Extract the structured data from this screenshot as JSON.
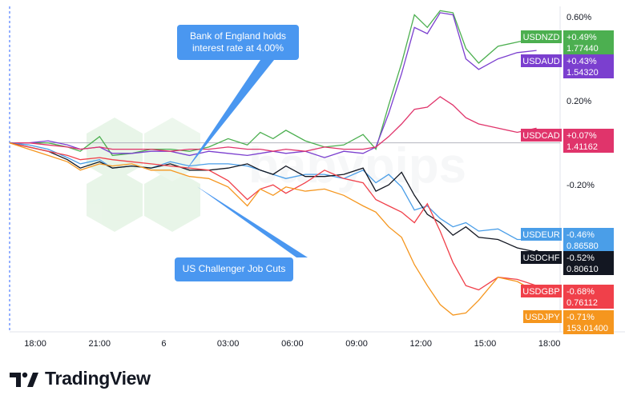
{
  "branding": {
    "name": "TradingView",
    "watermark": "babypips"
  },
  "chart_data": {
    "type": "line",
    "x_ticks": [
      "18:00",
      "21:00",
      "6",
      "03:00",
      "06:00",
      "09:00",
      "12:00",
      "15:00",
      "18:00"
    ],
    "y_ticks": [
      "0.60%",
      "0.20%",
      "-0.20%",
      "-0.60%"
    ],
    "ylim": [
      -0.9,
      0.65
    ],
    "x_unit_hours_from_first_tick": true,
    "xlim_hours": [
      -1.2,
      24.5
    ],
    "grid": false,
    "annotations": [
      {
        "text": [
          "Bank of England holds",
          "interest rate at 4.00%"
        ],
        "x": 7.0,
        "y": -0.09
      },
      {
        "text": [
          "US Challenger Job Cuts"
        ],
        "x": 7.55,
        "y": -0.17
      }
    ],
    "series": [
      {
        "name": "USDNZD",
        "color": "#4caf50",
        "change": "+0.49%",
        "price": "1.77440",
        "x": [
          -1.2,
          -0.3,
          0.6,
          1.5,
          2.1,
          3.0,
          3.6,
          4.5,
          5.4,
          6.3,
          7.2,
          8.1,
          9.0,
          9.9,
          10.5,
          11.1,
          11.7,
          12.6,
          13.5,
          14.4,
          15.3,
          15.9,
          16.5,
          17.1,
          17.7,
          18.3,
          18.9,
          19.5,
          20.1,
          20.7,
          21.6,
          22.5,
          23.4
        ],
        "values": [
          0.0,
          0.0,
          0.0,
          -0.02,
          -0.04,
          0.03,
          -0.06,
          -0.05,
          -0.03,
          -0.03,
          -0.04,
          -0.02,
          0.02,
          -0.01,
          0.05,
          0.02,
          0.06,
          0.01,
          -0.02,
          -0.01,
          0.04,
          -0.03,
          0.18,
          0.38,
          0.61,
          0.55,
          0.63,
          0.62,
          0.45,
          0.38,
          0.46,
          0.48,
          0.5
        ]
      },
      {
        "name": "USDAUD",
        "color": "#7b3fcf",
        "change": "+0.43%",
        "price": "1.54320",
        "x": [
          -1.2,
          -0.3,
          0.6,
          1.5,
          2.1,
          3.0,
          3.6,
          4.5,
          5.4,
          6.3,
          7.2,
          8.1,
          9.0,
          9.9,
          10.5,
          11.1,
          11.7,
          12.6,
          13.5,
          14.4,
          15.3,
          15.9,
          16.5,
          17.1,
          17.7,
          18.3,
          18.9,
          19.5,
          20.1,
          20.7,
          21.6,
          22.5,
          23.4
        ],
        "values": [
          0.0,
          0.0,
          0.01,
          -0.01,
          -0.03,
          -0.02,
          -0.05,
          -0.05,
          -0.04,
          -0.04,
          -0.06,
          -0.04,
          -0.05,
          -0.06,
          -0.05,
          -0.04,
          -0.05,
          -0.04,
          -0.07,
          -0.04,
          -0.05,
          -0.02,
          0.14,
          0.33,
          0.55,
          0.52,
          0.62,
          0.61,
          0.4,
          0.35,
          0.4,
          0.43,
          0.44
        ]
      },
      {
        "name": "USDCAD",
        "color": "#e0346b",
        "change": "+0.07%",
        "price": "1.41162",
        "x": [
          -1.2,
          -0.3,
          0.6,
          1.5,
          2.1,
          3.0,
          3.6,
          4.5,
          5.4,
          6.3,
          7.2,
          8.1,
          9.0,
          9.9,
          10.5,
          11.1,
          11.7,
          12.6,
          13.5,
          14.4,
          15.3,
          15.9,
          16.5,
          17.1,
          17.7,
          18.3,
          18.9,
          19.5,
          20.1,
          20.7,
          21.6,
          22.5,
          23.4
        ],
        "values": [
          0.0,
          0.0,
          -0.01,
          -0.02,
          -0.03,
          -0.02,
          -0.03,
          -0.03,
          -0.03,
          -0.04,
          -0.03,
          -0.03,
          -0.02,
          -0.03,
          -0.03,
          -0.04,
          -0.03,
          -0.04,
          -0.02,
          -0.03,
          -0.03,
          -0.02,
          0.03,
          0.09,
          0.16,
          0.17,
          0.22,
          0.18,
          0.12,
          0.09,
          0.07,
          0.05,
          0.07
        ]
      },
      {
        "name": "USDEUR",
        "color": "#4a9ee8",
        "change": "-0.46%",
        "price": "0.86580",
        "x": [
          -1.2,
          -0.3,
          0.6,
          1.5,
          2.1,
          3.0,
          3.6,
          4.5,
          5.4,
          6.3,
          7.2,
          8.1,
          9.0,
          9.9,
          10.5,
          11.1,
          11.7,
          12.6,
          13.5,
          14.4,
          15.3,
          15.9,
          16.5,
          17.1,
          17.7,
          18.3,
          18.9,
          19.5,
          20.1,
          20.7,
          21.6,
          22.5,
          23.4
        ],
        "values": [
          0.0,
          -0.01,
          -0.03,
          -0.07,
          -0.1,
          -0.08,
          -0.12,
          -0.11,
          -0.12,
          -0.09,
          -0.11,
          -0.1,
          -0.1,
          -0.11,
          -0.13,
          -0.15,
          -0.17,
          -0.15,
          -0.15,
          -0.17,
          -0.13,
          -0.19,
          -0.15,
          -0.21,
          -0.32,
          -0.3,
          -0.36,
          -0.4,
          -0.38,
          -0.42,
          -0.41,
          -0.46,
          -0.46
        ]
      },
      {
        "name": "USDCHF",
        "color": "#131722",
        "change": "-0.52%",
        "price": "0.80610",
        "x": [
          -1.2,
          -0.3,
          0.6,
          1.5,
          2.1,
          3.0,
          3.6,
          4.5,
          5.4,
          6.3,
          7.2,
          8.1,
          9.0,
          9.9,
          10.5,
          11.1,
          11.7,
          12.6,
          13.5,
          14.4,
          15.3,
          15.9,
          16.5,
          17.1,
          17.7,
          18.3,
          18.9,
          19.5,
          20.1,
          20.7,
          21.6,
          22.5,
          23.4
        ],
        "values": [
          0.0,
          -0.02,
          -0.04,
          -0.08,
          -0.12,
          -0.09,
          -0.12,
          -0.11,
          -0.12,
          -0.1,
          -0.13,
          -0.13,
          -0.12,
          -0.1,
          -0.13,
          -0.15,
          -0.11,
          -0.16,
          -0.16,
          -0.15,
          -0.12,
          -0.23,
          -0.2,
          -0.14,
          -0.25,
          -0.34,
          -0.38,
          -0.44,
          -0.4,
          -0.45,
          -0.46,
          -0.5,
          -0.52
        ]
      },
      {
        "name": "USDGBP",
        "color": "#f0404a",
        "change": "-0.68%",
        "price": "0.76112",
        "x": [
          -1.2,
          -0.3,
          0.6,
          1.5,
          2.1,
          3.0,
          3.6,
          4.5,
          5.4,
          6.3,
          7.2,
          8.1,
          9.0,
          9.9,
          10.5,
          11.1,
          11.7,
          12.6,
          13.5,
          14.4,
          15.3,
          15.9,
          16.5,
          17.1,
          17.7,
          18.3,
          18.9,
          19.5,
          20.1,
          20.7,
          21.6,
          22.5,
          23.4
        ],
        "values": [
          0.0,
          -0.02,
          -0.04,
          -0.06,
          -0.08,
          -0.07,
          -0.08,
          -0.09,
          -0.1,
          -0.11,
          -0.12,
          -0.13,
          -0.18,
          -0.27,
          -0.22,
          -0.2,
          -0.24,
          -0.19,
          -0.13,
          -0.17,
          -0.19,
          -0.27,
          -0.3,
          -0.33,
          -0.38,
          -0.29,
          -0.42,
          -0.57,
          -0.68,
          -0.7,
          -0.64,
          -0.65,
          -0.68
        ]
      },
      {
        "name": "USDJPY",
        "color": "#f5961e",
        "change": "-0.71%",
        "price": "153.01400",
        "x": [
          -1.2,
          -0.3,
          0.6,
          1.5,
          2.1,
          3.0,
          3.6,
          4.5,
          5.4,
          6.3,
          7.2,
          8.1,
          9.0,
          9.9,
          10.5,
          11.1,
          11.7,
          12.6,
          13.5,
          14.4,
          15.3,
          15.9,
          16.5,
          17.1,
          17.7,
          18.3,
          18.9,
          19.5,
          20.1,
          20.7,
          21.6,
          22.5,
          23.4
        ],
        "values": [
          0.0,
          -0.03,
          -0.06,
          -0.09,
          -0.13,
          -0.1,
          -0.11,
          -0.1,
          -0.13,
          -0.13,
          -0.16,
          -0.17,
          -0.21,
          -0.3,
          -0.22,
          -0.25,
          -0.21,
          -0.23,
          -0.22,
          -0.25,
          -0.3,
          -0.33,
          -0.4,
          -0.45,
          -0.58,
          -0.68,
          -0.77,
          -0.82,
          -0.81,
          -0.75,
          -0.64,
          -0.66,
          -0.71
        ]
      }
    ]
  }
}
